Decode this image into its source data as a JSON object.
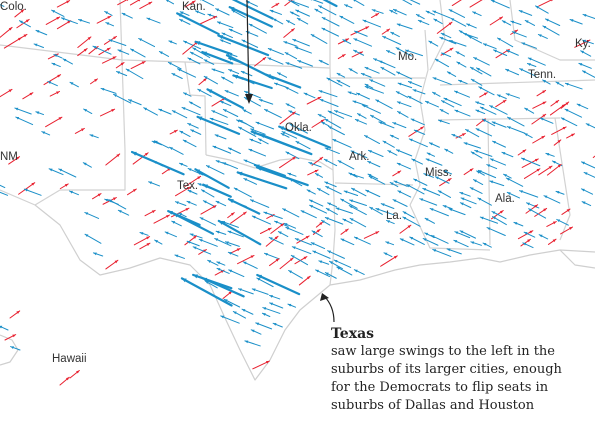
{
  "map": {
    "state_labels": {
      "colo": "Colo.",
      "kan": "Kan.",
      "ky": "Ky.",
      "mo": "Mo.",
      "tenn": "Tenn.",
      "okla": "Okla.",
      "ark": "Ark.",
      "nm": "NM",
      "tex": "Tex.",
      "miss": "Miss.",
      "ala": "Ala.",
      "la": "La.",
      "hawaii": "Hawaii"
    },
    "colors": {
      "democratic_shift": "#1a8fc8",
      "republican_shift": "#e8202f",
      "state_border": "#d2d2d2",
      "text": "#333333"
    },
    "arrow_meaning": {
      "left_pointing_blue": "swing to the left",
      "right_pointing_red": "swing to the right"
    }
  },
  "annotation": {
    "title": "Texas",
    "body": "saw large swings to the left in the\nsuburbs of its larger cities, enough\nfor the Democrats to flip seats in\nsuburbs of Dallas and Houston"
  }
}
